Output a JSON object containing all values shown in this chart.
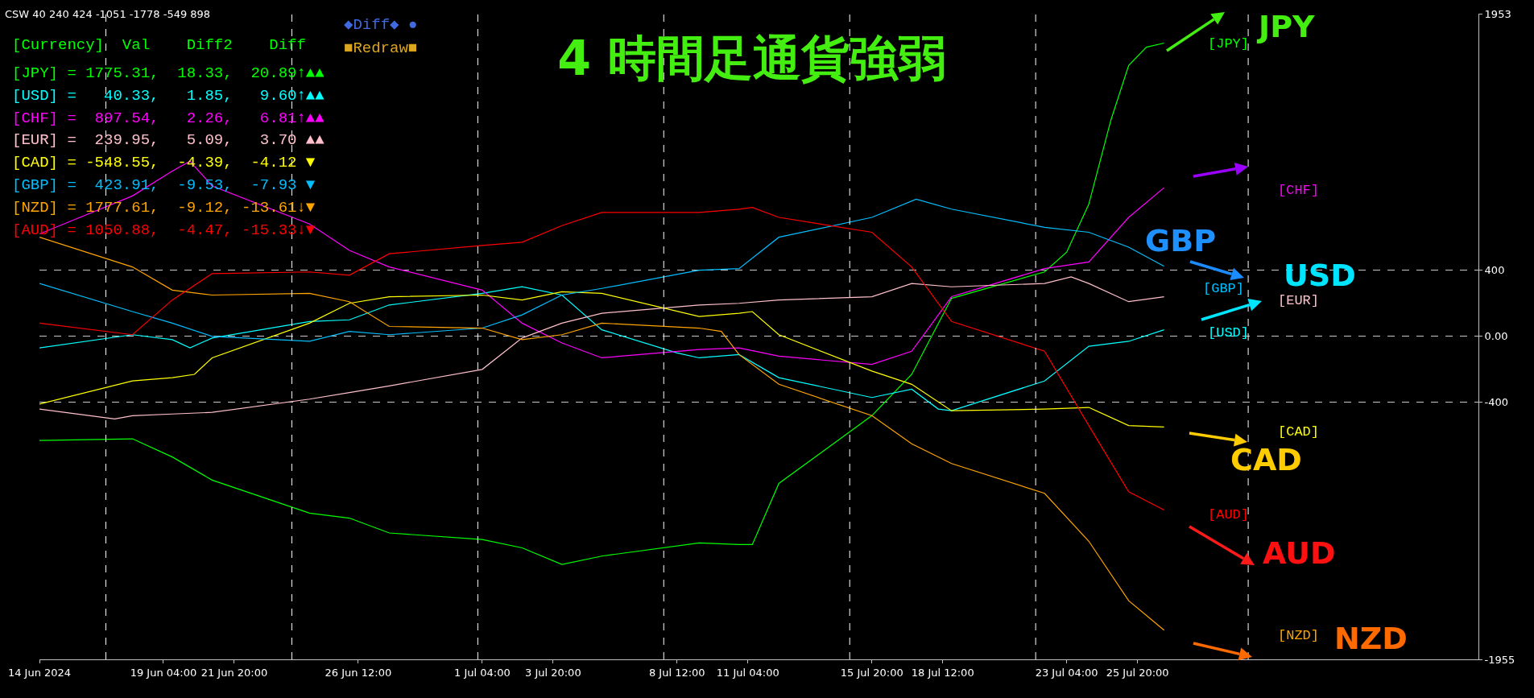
{
  "chart_data": {
    "type": "line",
    "title": "4 時間足通貨強弱",
    "xlim": [
      "2024-06-14T12:00",
      "2024-08-07T16:00"
    ],
    "xticks": [
      {
        "value": "2024-06-14T12:00",
        "label": "14 Jun 2024"
      },
      {
        "value": "2024-06-19T04:00",
        "label": "19 Jun 04:00"
      },
      {
        "value": "2024-06-21T20:00",
        "label": "21 Jun 20:00"
      },
      {
        "value": "2024-06-26T12:00",
        "label": "26 Jun 12:00"
      },
      {
        "value": "2024-07-01T04:00",
        "label": "1 Jul 04:00"
      },
      {
        "value": "2024-07-03T20:00",
        "label": "3 Jul 20:00"
      },
      {
        "value": "2024-07-08T12:00",
        "label": "8 Jul 12:00"
      },
      {
        "value": "2024-07-11T04:00",
        "label": "11 Jul 04:00"
      },
      {
        "value": "2024-07-15T20:00",
        "label": "15 Jul 20:00"
      },
      {
        "value": "2024-07-18T12:00",
        "label": "18 Jul 12:00"
      },
      {
        "value": "2024-07-23T04:00",
        "label": "23 Jul 04:00"
      },
      {
        "value": "2024-07-25T20:00",
        "label": "25 Jul 20:00"
      }
    ],
    "ylim": [
      -1955,
      1953
    ],
    "yticks": [
      1953,
      400,
      {
        "value": 0,
        "label": "0.00"
      },
      -400,
      -1955
    ],
    "grid": "y",
    "line_style": "solid",
    "series": [
      {
        "color": "#00ff00",
        "x": [
          "2024-06-14T12:00",
          "2024-06-18T00:00",
          "2024-06-19T12:00",
          "2024-06-21T00:00",
          "2024-06-24T16:00",
          "2024-06-26T04:00",
          "2024-06-27T16:00",
          "2024-07-01T04:00",
          "2024-07-02T16:00",
          "2024-07-04T04:00",
          "2024-07-05T16:00",
          "2024-07-09T08:00",
          "2024-07-10T20:00",
          "2024-07-11T08:00",
          "2024-07-12T08:00",
          "2024-07-15T20:00",
          "2024-07-17T08:00",
          "2024-07-18T20:00",
          "2024-07-22T08:00",
          "2024-07-23T04:00",
          "2024-07-24T00:00",
          "2024-07-24T20:00",
          "2024-07-25T12:00",
          "2024-07-26T04:00",
          "2024-07-26T20:00"
        ],
        "values": [
          -630,
          -620,
          -730,
          -870,
          -1070,
          -1100,
          -1190,
          -1230,
          -1280,
          -1380,
          -1330,
          -1250,
          -1260,
          -1260,
          -890,
          -480,
          -230,
          230,
          390,
          510,
          800,
          1310,
          1640,
          1750,
          1775
        ]
      },
      {
        "color": "#00ffff",
        "x": [
          "2024-06-14T12:00",
          "2024-06-18T00:00",
          "2024-06-19T12:00",
          "2024-06-20T04:00",
          "2024-06-21T00:00",
          "2024-06-24T16:00",
          "2024-06-26T04:00",
          "2024-06-27T16:00",
          "2024-07-01T04:00",
          "2024-07-02T16:00",
          "2024-07-04T04:00",
          "2024-07-05T16:00",
          "2024-07-08T12:00",
          "2024-07-09T08:00",
          "2024-07-10T20:00",
          "2024-07-12T08:00",
          "2024-07-15T20:00",
          "2024-07-17T08:00",
          "2024-07-18T08:00",
          "2024-07-18T20:00",
          "2024-07-22T08:00",
          "2024-07-24T00:00",
          "2024-07-25T12:00",
          "2024-07-26T20:00"
        ],
        "values": [
          -70,
          10,
          -20,
          -70,
          -10,
          90,
          100,
          190,
          260,
          300,
          250,
          40,
          -100,
          -130,
          -110,
          -250,
          -370,
          -320,
          -440,
          -450,
          -270,
          -60,
          -30,
          40
        ]
      },
      {
        "color": "#ff00ff",
        "x": [
          "2024-06-14T12:00",
          "2024-06-18T00:00",
          "2024-06-19T12:00",
          "2024-06-20T04:00",
          "2024-06-21T00:00",
          "2024-06-24T16:00",
          "2024-06-26T04:00",
          "2024-06-27T16:00",
          "2024-07-01T04:00",
          "2024-07-02T16:00",
          "2024-07-04T04:00",
          "2024-07-05T16:00",
          "2024-07-09T08:00",
          "2024-07-10T20:00",
          "2024-07-12T08:00",
          "2024-07-15T20:00",
          "2024-07-17T08:00",
          "2024-07-18T20:00",
          "2024-07-22T08:00",
          "2024-07-24T00:00",
          "2024-07-25T12:00",
          "2024-07-26T20:00"
        ],
        "values": [
          620,
          850,
          1000,
          1060,
          910,
          680,
          520,
          420,
          280,
          80,
          -40,
          -130,
          -80,
          -70,
          -120,
          -170,
          -90,
          240,
          410,
          450,
          720,
          900
        ]
      },
      {
        "color": "#ffc0cb",
        "x": [
          "2024-06-14T12:00",
          "2024-06-17T08:00",
          "2024-06-18T00:00",
          "2024-06-19T12:00",
          "2024-06-21T00:00",
          "2024-06-24T16:00",
          "2024-06-26T04:00",
          "2024-06-27T16:00",
          "2024-07-01T04:00",
          "2024-07-02T16:00",
          "2024-07-04T04:00",
          "2024-07-05T16:00",
          "2024-07-09T08:00",
          "2024-07-10T20:00",
          "2024-07-12T08:00",
          "2024-07-15T20:00",
          "2024-07-17T08:00",
          "2024-07-18T20:00",
          "2024-07-22T08:00",
          "2024-07-23T08:00",
          "2024-07-24T00:00",
          "2024-07-25T12:00",
          "2024-07-26T20:00"
        ],
        "values": [
          -440,
          -500,
          -480,
          -470,
          -460,
          -380,
          -340,
          -300,
          -200,
          -10,
          80,
          140,
          190,
          200,
          220,
          240,
          320,
          300,
          320,
          360,
          320,
          210,
          240
        ]
      },
      {
        "color": "#ffff00",
        "x": [
          "2024-06-14T12:00",
          "2024-06-18T00:00",
          "2024-06-19T12:00",
          "2024-06-20T08:00",
          "2024-06-21T00:00",
          "2024-06-24T16:00",
          "2024-06-26T04:00",
          "2024-06-27T16:00",
          "2024-07-01T04:00",
          "2024-07-02T16:00",
          "2024-07-04T04:00",
          "2024-07-05T16:00",
          "2024-07-09T08:00",
          "2024-07-10T20:00",
          "2024-07-11T08:00",
          "2024-07-12T08:00",
          "2024-07-15T20:00",
          "2024-07-17T08:00",
          "2024-07-18T20:00",
          "2024-07-22T08:00",
          "2024-07-24T00:00",
          "2024-07-25T12:00",
          "2024-07-26T20:00"
        ],
        "values": [
          -410,
          -270,
          -250,
          -230,
          -130,
          80,
          200,
          240,
          250,
          220,
          270,
          260,
          120,
          140,
          150,
          10,
          -210,
          -290,
          -450,
          -440,
          -430,
          -540,
          -549
        ]
      },
      {
        "color": "#00bfff",
        "x": [
          "2024-06-14T12:00",
          "2024-06-18T00:00",
          "2024-06-19T12:00",
          "2024-06-21T00:00",
          "2024-06-24T16:00",
          "2024-06-26T04:00",
          "2024-06-27T16:00",
          "2024-07-01T04:00",
          "2024-07-02T16:00",
          "2024-07-04T04:00",
          "2024-07-05T16:00",
          "2024-07-09T08:00",
          "2024-07-10T20:00",
          "2024-07-12T08:00",
          "2024-07-15T20:00",
          "2024-07-17T12:00",
          "2024-07-18T20:00",
          "2024-07-22T08:00",
          "2024-07-24T00:00",
          "2024-07-25T12:00",
          "2024-07-26T20:00"
        ],
        "values": [
          320,
          150,
          80,
          0,
          -30,
          30,
          10,
          50,
          130,
          250,
          290,
          400,
          410,
          600,
          720,
          830,
          770,
          660,
          630,
          540,
          424
        ]
      },
      {
        "color": "#ffa500",
        "x": [
          "2024-06-14T12:00",
          "2024-06-18T00:00",
          "2024-06-19T12:00",
          "2024-06-21T00:00",
          "2024-06-24T16:00",
          "2024-06-26T04:00",
          "2024-06-27T16:00",
          "2024-07-01T04:00",
          "2024-07-02T16:00",
          "2024-07-04T04:00",
          "2024-07-05T16:00",
          "2024-07-09T08:00",
          "2024-07-10T04:00",
          "2024-07-10T20:00",
          "2024-07-12T08:00",
          "2024-07-15T20:00",
          "2024-07-17T08:00",
          "2024-07-18T20:00",
          "2024-07-22T08:00",
          "2024-07-24T00:00",
          "2024-07-25T12:00",
          "2024-07-26T20:00"
        ],
        "values": [
          600,
          420,
          280,
          250,
          260,
          210,
          60,
          50,
          -20,
          10,
          80,
          50,
          30,
          -110,
          -290,
          -480,
          -650,
          -770,
          -950,
          -1240,
          -1600,
          -1778
        ]
      },
      {
        "color": "#ff0000",
        "x": [
          "2024-06-14T12:00",
          "2024-06-18T00:00",
          "2024-06-19T12:00",
          "2024-06-21T00:00",
          "2024-06-24T16:00",
          "2024-06-26T04:00",
          "2024-06-27T16:00",
          "2024-07-01T04:00",
          "2024-07-02T16:00",
          "2024-07-04T04:00",
          "2024-07-05T16:00",
          "2024-07-09T08:00",
          "2024-07-10T20:00",
          "2024-07-11T08:00",
          "2024-07-12T08:00",
          "2024-07-15T20:00",
          "2024-07-17T08:00",
          "2024-07-18T20:00",
          "2024-07-22T08:00",
          "2024-07-24T00:00",
          "2024-07-25T12:00",
          "2024-07-26T20:00"
        ],
        "values": [
          80,
          10,
          220,
          380,
          390,
          370,
          500,
          550,
          570,
          670,
          750,
          750,
          770,
          780,
          720,
          630,
          420,
          90,
          -90,
          -540,
          -940,
          -1051
        ]
      }
    ],
    "ref_lines": [
      {
        "axis": "x",
        "value": "2024-06-17T00:00",
        "color": "#ffffff",
        "line_style": "dashed"
      },
      {
        "axis": "x",
        "value": "2024-06-24T00:00",
        "color": "#ffffff",
        "line_style": "dashed"
      },
      {
        "axis": "x",
        "value": "2024-07-01T00:00",
        "color": "#ffffff",
        "line_style": "dashed"
      },
      {
        "axis": "x",
        "value": "2024-07-08T00:00",
        "color": "#ffffff",
        "line_style": "dashed"
      },
      {
        "axis": "x",
        "value": "2024-07-15T00:00",
        "color": "#ffffff",
        "line_style": "dashed"
      },
      {
        "axis": "x",
        "value": "2024-07-22T00:00",
        "color": "#ffffff",
        "line_style": "dashed"
      },
      {
        "axis": "x",
        "value": "2024-07-30T00:00",
        "color": "#ffffff",
        "line_style": "dashed"
      }
    ],
    "annotations": [
      "CSW 40 240 424 -1051 -1778 -549 898",
      "[Currency]  Val    Diff2    Diff",
      "[JPY] = 1775.31,  18.33,  20.89↑▲▲",
      "[USD] =   40.33,   1.85,   9.60↑▲▲",
      "[CHF] =  897.54,   2.26,   6.81↑▲▲",
      "[EUR] =  239.95,   5.09,   3.70 ▲▲",
      "[CAD] = -548.55,  -4.39,  -4.12 ▼",
      "[GBP] =  423.91,  -9.53,  -7.93 ▼",
      "[NZD] = 1777.61,  -9.12, -13.61↓▼",
      "[AUD] = 1050.88,  -4.47, -15.33↓▼",
      "◆Diff◆ ●",
      "■Redraw■",
      "[JPY]",
      "[USD]",
      "[CHF]",
      "[EUR]",
      "[CAD]",
      "[GBP]",
      "[NZD]",
      "[AUD]",
      "JPY",
      "GBP",
      "USD",
      "CAD",
      "AUD",
      "NZD"
    ]
  }
}
